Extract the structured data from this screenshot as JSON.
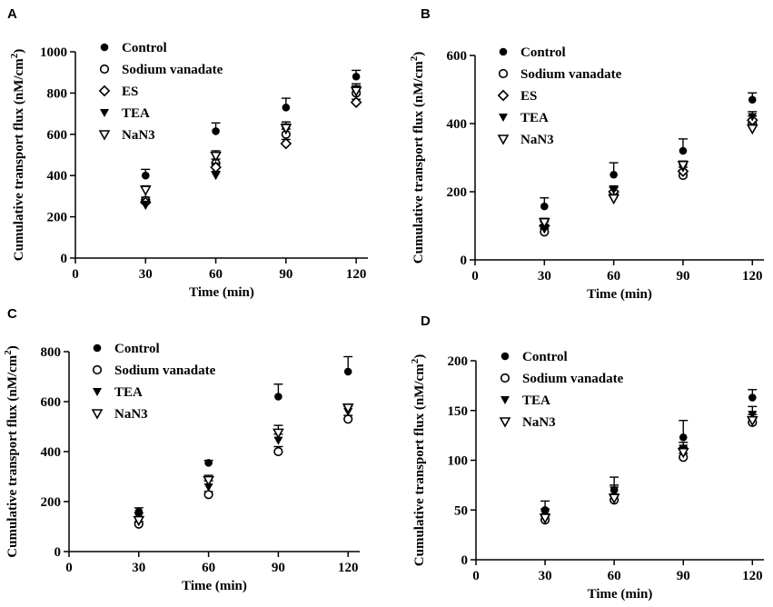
{
  "chart_data": [
    {
      "panel": "A",
      "type": "scatter",
      "xlabel": "Time (min)",
      "ylabel": "Cumulative transport flux (nM/cm",
      "ylabel_sup": "2",
      "ylabel_close": ")",
      "xlim": [
        0,
        125
      ],
      "ylim": [
        0,
        1000
      ],
      "xticks": [
        0,
        30,
        60,
        90,
        120
      ],
      "yticks": [
        0,
        200,
        400,
        600,
        800,
        1000
      ],
      "series": [
        {
          "name": "Control",
          "marker": "filled-circle",
          "x": [
            30,
            60,
            90,
            120
          ],
          "y": [
            400,
            615,
            730,
            880
          ],
          "err": [
            30,
            40,
            45,
            30
          ]
        },
        {
          "name": "Sodium vanadate",
          "marker": "open-circle",
          "x": [
            30,
            60,
            90,
            120
          ],
          "y": [
            280,
            460,
            600,
            800
          ],
          "err": [
            15,
            20,
            25,
            20
          ]
        },
        {
          "name": "ES",
          "marker": "open-diamond",
          "x": [
            30,
            60,
            90,
            120
          ],
          "y": [
            270,
            440,
            555,
            755
          ],
          "err": [
            15,
            20,
            20,
            15
          ]
        },
        {
          "name": "TEA",
          "marker": "filled-down-triangle",
          "x": [
            30,
            60,
            90,
            120
          ],
          "y": [
            255,
            400,
            620,
            820
          ],
          "err": [
            20,
            20,
            30,
            25
          ]
        },
        {
          "name": "NaN3",
          "marker": "open-down-triangle",
          "x": [
            30,
            60,
            90,
            120
          ],
          "y": [
            330,
            495,
            630,
            810
          ],
          "err": [
            20,
            25,
            30,
            25
          ]
        }
      ]
    },
    {
      "panel": "B",
      "type": "scatter",
      "xlabel": "Time (min)",
      "ylabel": "Cumulative transport flux (nM/cm",
      "ylabel_sup": "2",
      "ylabel_close": ")",
      "xlim": [
        0,
        125
      ],
      "ylim": [
        0,
        600
      ],
      "xticks": [
        0,
        30,
        60,
        90,
        120
      ],
      "yticks": [
        0,
        200,
        400,
        600
      ],
      "series": [
        {
          "name": "Control",
          "marker": "filled-circle",
          "x": [
            30,
            60,
            90,
            120
          ],
          "y": [
            157,
            250,
            320,
            470
          ],
          "err": [
            25,
            35,
            35,
            20
          ]
        },
        {
          "name": "Sodium vanadate",
          "marker": "open-circle",
          "x": [
            30,
            60,
            90,
            120
          ],
          "y": [
            82,
            190,
            248,
            400
          ],
          "err": [
            10,
            12,
            12,
            12
          ]
        },
        {
          "name": "ES",
          "marker": "open-diamond",
          "x": [
            30,
            60,
            90,
            120
          ],
          "y": [
            100,
            200,
            260,
            410
          ],
          "err": [
            12,
            12,
            12,
            12
          ]
        },
        {
          "name": "TEA",
          "marker": "filled-down-triangle",
          "x": [
            30,
            60,
            90,
            120
          ],
          "y": [
            90,
            205,
            270,
            420
          ],
          "err": [
            12,
            12,
            15,
            15
          ]
        },
        {
          "name": "NaN3",
          "marker": "open-down-triangle",
          "x": [
            30,
            60,
            90,
            120
          ],
          "y": [
            110,
            180,
            278,
            385
          ],
          "err": [
            12,
            12,
            12,
            12
          ]
        }
      ]
    },
    {
      "panel": "C",
      "type": "scatter",
      "xlabel": "Time (min)",
      "ylabel": "Cumulative transport flux (nM/cm",
      "ylabel_sup": "2",
      "ylabel_close": ")",
      "xlim": [
        0,
        125
      ],
      "ylim": [
        0,
        800
      ],
      "xticks": [
        0,
        30,
        60,
        90,
        120
      ],
      "yticks": [
        0,
        200,
        400,
        600,
        800
      ],
      "series": [
        {
          "name": "Control",
          "marker": "filled-circle",
          "x": [
            30,
            60,
            90,
            120
          ],
          "y": [
            160,
            355,
            620,
            720
          ],
          "err": [
            15,
            10,
            50,
            60
          ]
        },
        {
          "name": "Sodium vanadate",
          "marker": "open-circle",
          "x": [
            30,
            60,
            90,
            120
          ],
          "y": [
            110,
            228,
            400,
            530
          ],
          "err": [
            10,
            12,
            20,
            15
          ]
        },
        {
          "name": "TEA",
          "marker": "filled-down-triangle",
          "x": [
            30,
            60,
            90,
            120
          ],
          "y": [
            140,
            258,
            445,
            560
          ],
          "err": [
            15,
            25,
            25,
            20
          ]
        },
        {
          "name": "NaN3",
          "marker": "open-down-triangle",
          "x": [
            30,
            60,
            90,
            120
          ],
          "y": [
            125,
            285,
            475,
            575
          ],
          "err": [
            15,
            20,
            30,
            15
          ]
        }
      ]
    },
    {
      "panel": "D",
      "type": "scatter",
      "xlabel": "Time (min)",
      "ylabel": "Cumulative transport flux (nM/cm",
      "ylabel_sup": "2",
      "ylabel_close": ")",
      "xlim": [
        0,
        125
      ],
      "ylim": [
        0,
        200
      ],
      "xticks": [
        0,
        30,
        60,
        90,
        120
      ],
      "yticks": [
        0,
        50,
        100,
        150,
        200
      ],
      "series": [
        {
          "name": "Control",
          "marker": "filled-circle",
          "x": [
            30,
            60,
            90,
            120
          ],
          "y": [
            50,
            70,
            123,
            163
          ],
          "err": [
            9,
            13,
            17,
            8
          ]
        },
        {
          "name": "Sodium vanadate",
          "marker": "open-circle",
          "x": [
            30,
            60,
            90,
            120
          ],
          "y": [
            40,
            60,
            103,
            138
          ],
          "err": [
            4,
            4,
            4,
            4
          ]
        },
        {
          "name": "TEA",
          "marker": "filled-down-triangle",
          "x": [
            30,
            60,
            90,
            120
          ],
          "y": [
            46,
            70,
            112,
            146
          ],
          "err": [
            5,
            5,
            6,
            8
          ]
        },
        {
          "name": "NaN3",
          "marker": "open-down-triangle",
          "x": [
            30,
            60,
            90,
            120
          ],
          "y": [
            42,
            62,
            108,
            140
          ],
          "err": [
            4,
            4,
            5,
            6
          ]
        }
      ]
    }
  ]
}
